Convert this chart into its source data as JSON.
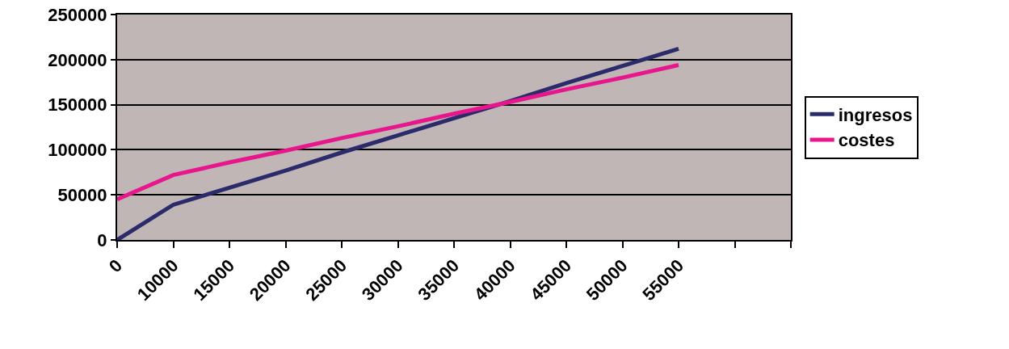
{
  "chart_data": {
    "type": "line",
    "categories": [
      "0",
      "10000",
      "15000",
      "20000",
      "25000",
      "30000",
      "35000",
      "40000",
      "45000",
      "50000",
      "55000",
      null,
      null
    ],
    "series": [
      {
        "name": "ingresos",
        "color": "#2b2b6b",
        "values": [
          0,
          39000,
          58000,
          77000,
          97000,
          116000,
          135000,
          154000,
          174000,
          193000,
          212000,
          null,
          null
        ]
      },
      {
        "name": "costes",
        "color": "#e8168c",
        "values": [
          45000,
          72000,
          86000,
          99000,
          113000,
          126000,
          140000,
          153000,
          167000,
          180000,
          194000,
          null,
          null
        ]
      }
    ],
    "ylim": [
      0,
      250000
    ],
    "yticks": [
      0,
      50000,
      100000,
      150000,
      200000,
      250000
    ],
    "grid": "y",
    "legend": "right",
    "marker": "none",
    "line_style": "solid"
  }
}
